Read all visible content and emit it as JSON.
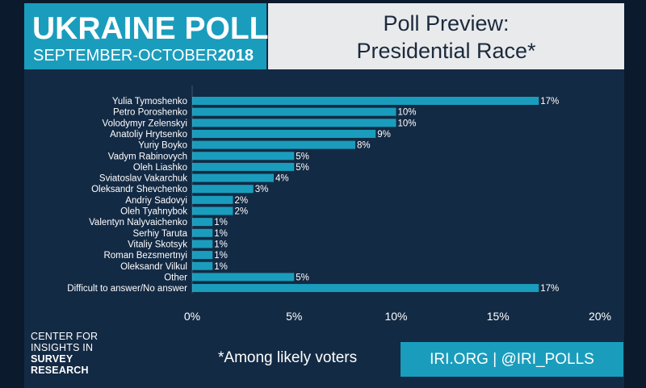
{
  "header": {
    "title": "UKRAINE POLL",
    "subtitle_main": "SEPTEMBER-OCTOBER",
    "subtitle_year": "2018",
    "panel_line1": "Poll Preview:",
    "panel_line2": "Presidential Race*"
  },
  "footer": {
    "logo_line1": "CENTER FOR",
    "logo_line2": "INSIGHTS IN",
    "logo_line3": "SURVEY",
    "logo_line4": "RESEARCH",
    "note": "*Among likely voters",
    "link": "IRI.ORG | @IRI_POLLS"
  },
  "colors": {
    "bar": "#1a9dbd",
    "background": "#132a44",
    "header_right": "#e9eaec"
  },
  "chart_data": {
    "type": "bar",
    "orientation": "horizontal",
    "categories": [
      "Yulia Tymoshenko",
      "Petro Poroshenko",
      "Volodymyr Zelenskyi",
      "Anatoliy Hrytsenko",
      "Yuriy Boyko",
      "Vadym Rabinovych",
      "Oleh Liashko",
      "Sviatoslav Vakarchuk",
      "Oleksandr Shevchenko",
      "Andriy Sadovyi",
      "Oleh Tyahnybok",
      "Valentyn Nalyvaichenko",
      "Serhiy Taruta",
      "Vitaliy Skotsyk",
      "Roman Bezsmertnyi",
      "Oleksandr Vilkul",
      "Other",
      "Difficult to answer/No answer"
    ],
    "values": [
      17,
      10,
      10,
      9,
      8,
      5,
      5,
      4,
      3,
      2,
      2,
      1,
      1,
      1,
      1,
      1,
      5,
      17
    ],
    "value_labels": [
      "17%",
      "10%",
      "10%",
      "9%",
      "8%",
      "5%",
      "5%",
      "4%",
      "3%",
      "2%",
      "2%",
      "1%",
      "1%",
      "1%",
      "1%",
      "1%",
      "5%",
      "17%"
    ],
    "xlim": [
      0,
      20
    ],
    "x_ticks": [
      0,
      5,
      10,
      15,
      20
    ],
    "x_tick_labels": [
      "0%",
      "5%",
      "10%",
      "15%",
      "20%"
    ],
    "grid": false
  }
}
